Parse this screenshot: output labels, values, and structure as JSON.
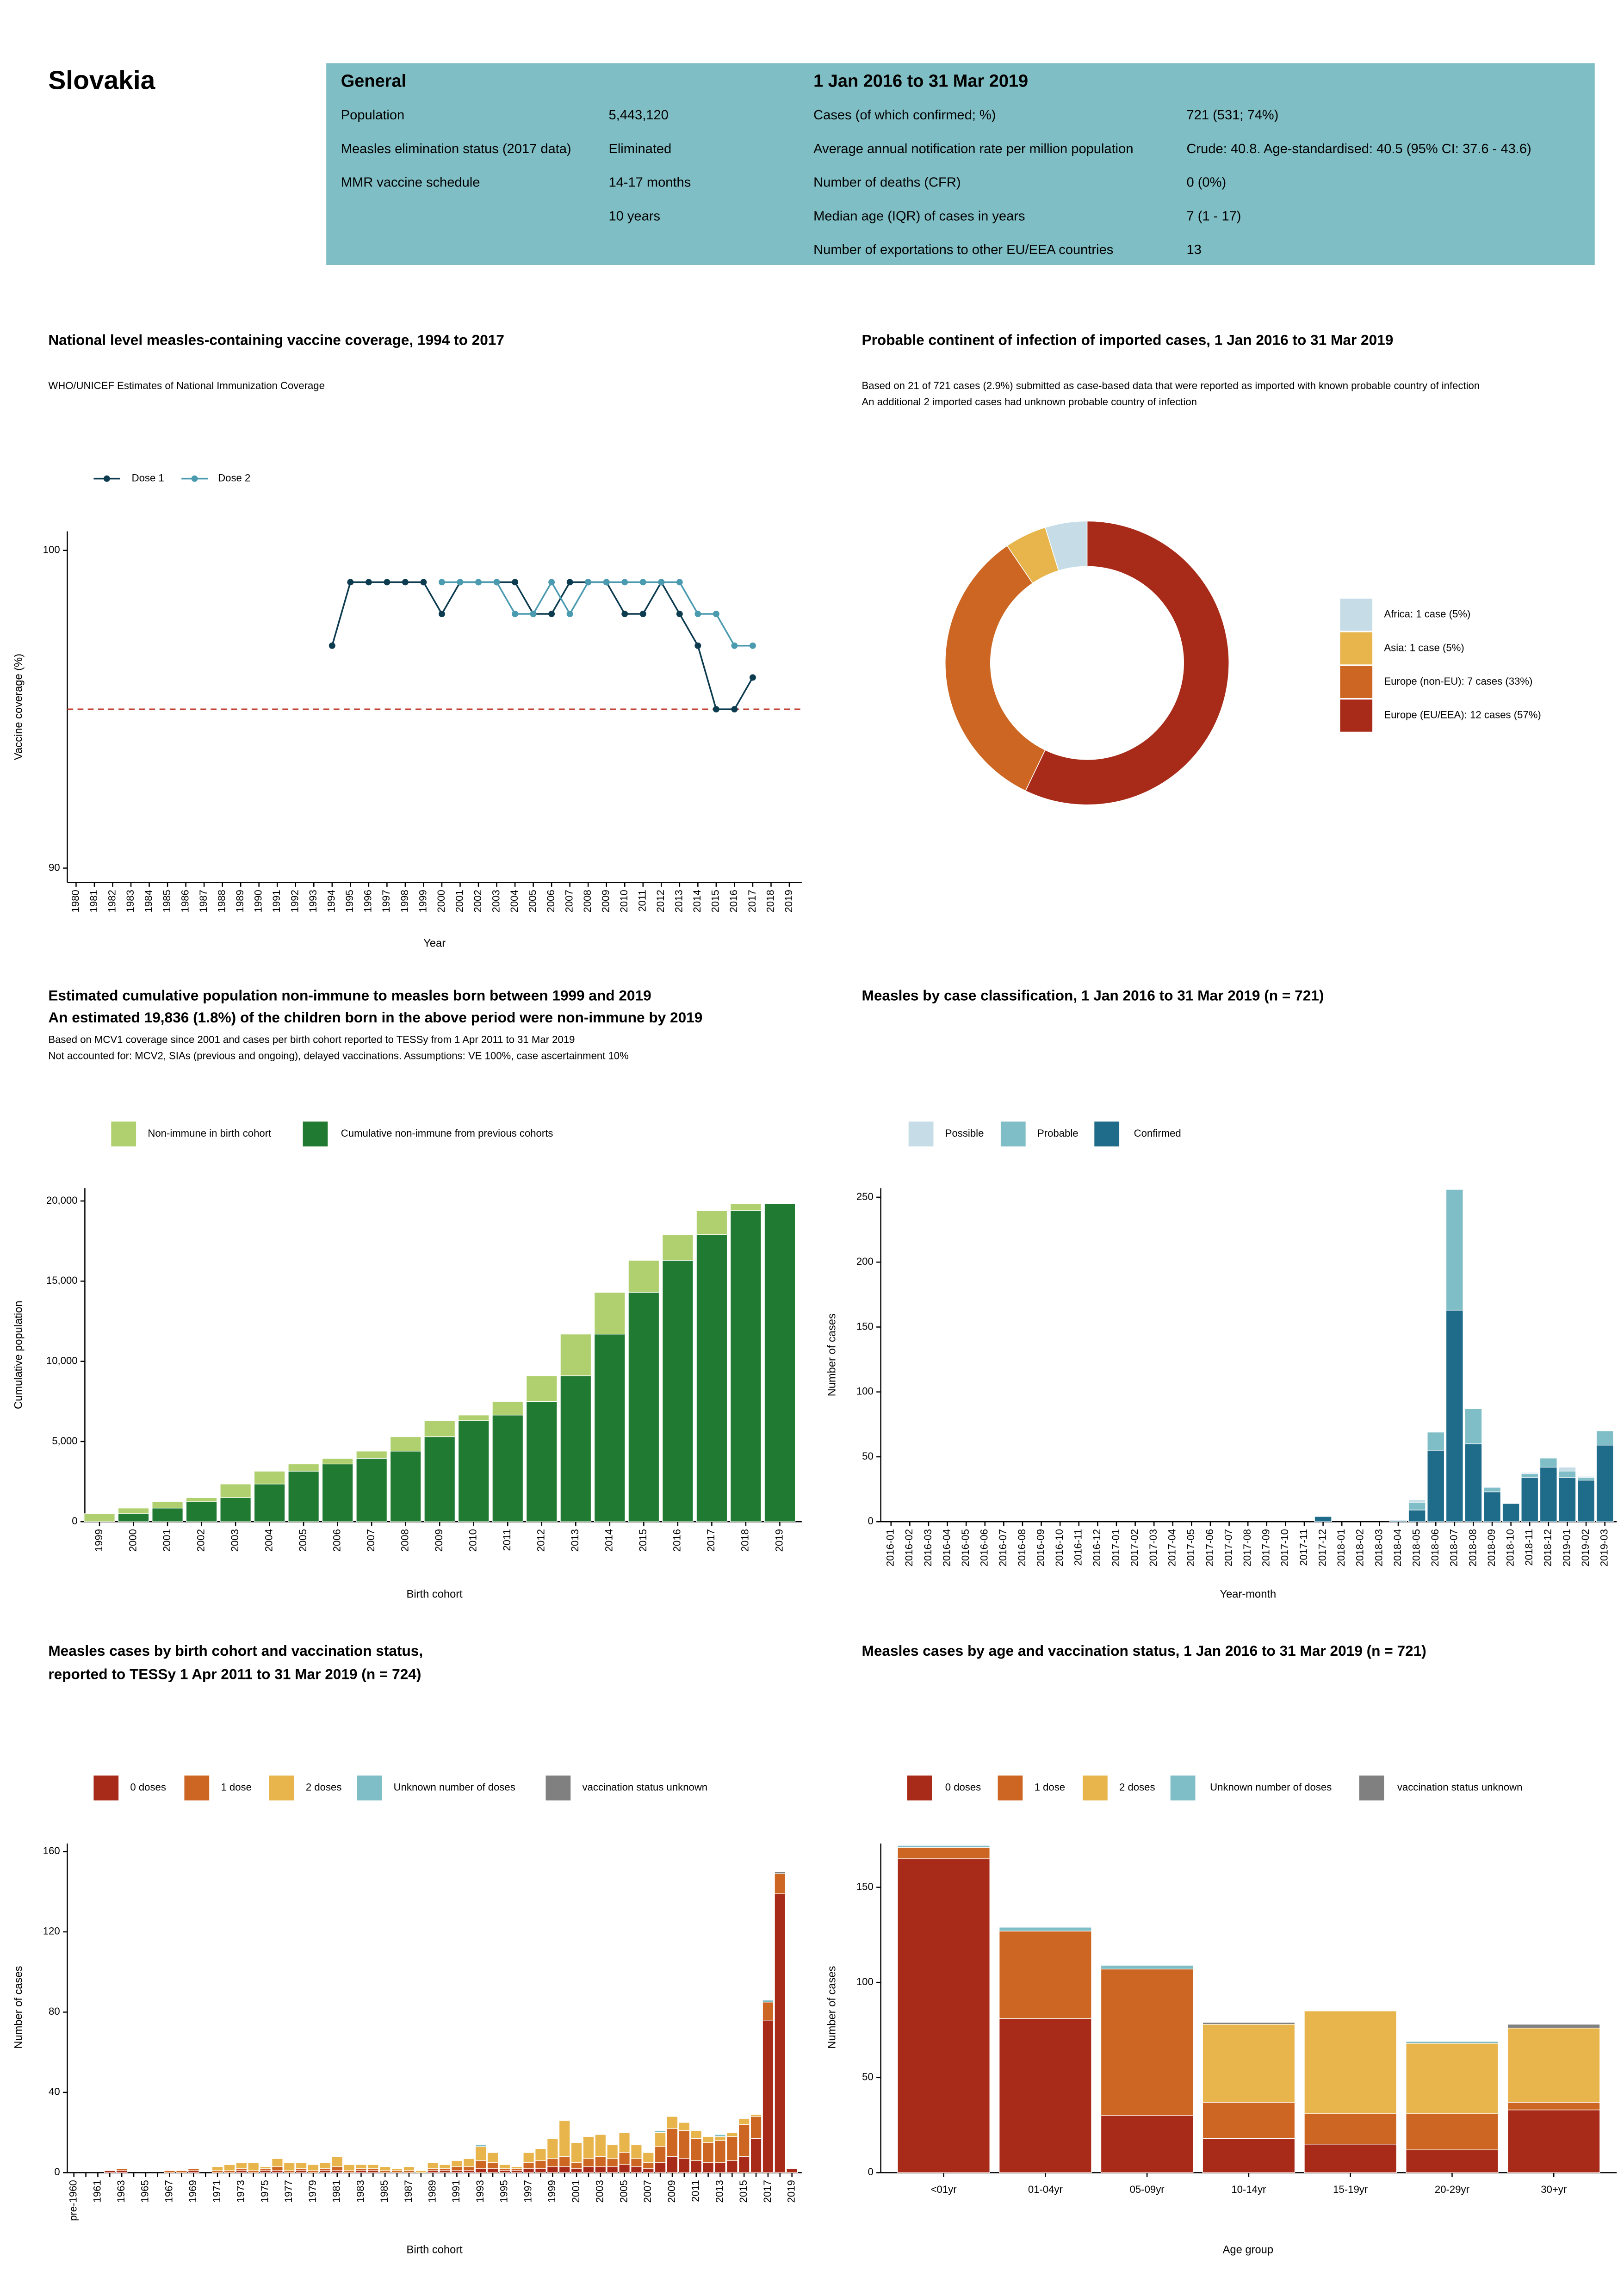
{
  "header": {
    "country": "Slovakia",
    "general": {
      "title": "General",
      "rows": [
        {
          "label": "Population",
          "value": "5,443,120"
        },
        {
          "label": "Measles elimination status (2017 data)",
          "value": "Eliminated"
        },
        {
          "label": "MMR vaccine schedule",
          "value": "14-17 months"
        },
        {
          "value": "10 years"
        }
      ]
    },
    "period": {
      "title": "1 Jan 2016 to 31 Mar 2019",
      "rows": [
        {
          "label": "Cases (of which confirmed; %)",
          "value": "721 (531; 74%)"
        },
        {
          "label": "Average annual notification rate per million population",
          "value": "Crude: 40.8. Age-standardised: 40.5 (95% CI: 37.6 - 43.6)"
        },
        {
          "label": "Number of deaths (CFR)",
          "value": "0 (0%)"
        },
        {
          "label": "Median age (IQR) of cases in years",
          "value": "7 (1 - 17)"
        },
        {
          "label": "Number of exportations to other EU/EEA countries",
          "value": "13"
        }
      ]
    }
  },
  "chart_data": [
    {
      "type": "line",
      "title": [
        "National level measles-containing vaccine coverage, 1994 to 2017"
      ],
      "subtitle": [
        "WHO/UNICEF Estimates of National Immunization Coverage"
      ],
      "x_label": "Year",
      "y_label": "Vaccine coverage (%)",
      "categories": [
        "1980",
        "1981",
        "1982",
        "1983",
        "1984",
        "1985",
        "1986",
        "1987",
        "1988",
        "1989",
        "1990",
        "1991",
        "1992",
        "1993",
        "1994",
        "1995",
        "1996",
        "1997",
        "1998",
        "1999",
        "2000",
        "2001",
        "2002",
        "2003",
        "2004",
        "2005",
        "2006",
        "2007",
        "2008",
        "2009",
        "2010",
        "2011",
        "2012",
        "2013",
        "2014",
        "2015",
        "2016",
        "2017",
        "2018",
        "2019"
      ],
      "series": [
        {
          "name": "Dose 1",
          "color": "#0d3b4f",
          "values": [
            null,
            null,
            null,
            null,
            null,
            null,
            null,
            null,
            null,
            null,
            null,
            null,
            null,
            null,
            97,
            99,
            99,
            99,
            99,
            99,
            98,
            99,
            99,
            99,
            99,
            98,
            98,
            99,
            99,
            99,
            98,
            98,
            99,
            98,
            97,
            95,
            95,
            96,
            null,
            null
          ]
        },
        {
          "name": "Dose 2",
          "color": "#4a9bb0",
          "values": [
            null,
            null,
            null,
            null,
            null,
            null,
            null,
            null,
            null,
            null,
            null,
            null,
            null,
            null,
            null,
            null,
            null,
            null,
            null,
            null,
            99,
            99,
            99,
            99,
            98,
            98,
            99,
            98,
            99,
            99,
            99,
            99,
            99,
            99,
            98,
            98,
            97,
            97,
            null,
            null
          ]
        }
      ],
      "reference_line": {
        "value": 95,
        "color": "#c0392b"
      },
      "ylim": [
        89.55,
        100.6
      ],
      "yticks": [
        90,
        100
      ]
    },
    {
      "type": "pie",
      "donut": true,
      "title": [
        "Probable continent of infection of imported cases, 1 Jan 2016 to 31 Mar 2019"
      ],
      "subtitle": [
        "Based on 21 of 721 cases (2.9%) submitted as case-based data that were reported as imported with known probable country of infection",
        "An additional 2 imported cases had unknown probable country of infection"
      ],
      "categories": [
        "Africa: 1 case (5%)",
        "Asia: 1 case (5%)",
        "Europe (non-EU): 7 cases (33%)",
        "Europe (EU/EEA): 12 cases (57%)"
      ],
      "values": [
        1,
        1,
        7,
        12
      ],
      "colors": [
        "#c6dde8",
        "#e8b54d",
        "#cc6622",
        "#a82a18"
      ]
    },
    {
      "type": "bar",
      "stacked": true,
      "title": [
        "Estimated cumulative population non-immune to measles born between 1999 and 2019",
        "An estimated 19,836 (1.8%) of the children born in the above period were non-immune by 2019"
      ],
      "subtitle": [
        "Based on MCV1 coverage since 2001 and cases per birth cohort reported to TESSy from 1 Apr 2011 to 31 Mar 2019",
        "Not accounted for: MCV2, SIAs (previous and ongoing), delayed vaccinations. Assumptions: VE 100%, case ascertainment 10%"
      ],
      "x_label": "Birth cohort",
      "y_label": "Cumulative population",
      "categories": [
        "1999",
        "2000",
        "2001",
        "2002",
        "2003",
        "2004",
        "2005",
        "2006",
        "2007",
        "2008",
        "2009",
        "2010",
        "2011",
        "2012",
        "2013",
        "2014",
        "2015",
        "2016",
        "2017",
        "2018",
        "2019"
      ],
      "series": [
        {
          "name": "Non-immune in birth cohort",
          "color": "#b0d070",
          "values": [
            500,
            350,
            400,
            250,
            850,
            800,
            450,
            350,
            450,
            900,
            1000,
            350,
            850,
            1600,
            2600,
            2600,
            2000,
            1600,
            1500,
            436,
            0
          ]
        },
        {
          "name": "Cumulative non-immune from previous cohorts",
          "color": "#217a32",
          "values": [
            0,
            500,
            850,
            1250,
            1500,
            2350,
            3150,
            3600,
            3950,
            4400,
            5300,
            6300,
            6650,
            7500,
            9100,
            11700,
            14300,
            16300,
            17900,
            19400,
            19836
          ]
        }
      ],
      "ylim": [
        0,
        20800
      ],
      "yticks": [
        0,
        {
          "value": 5000,
          "label": "5,000"
        },
        {
          "value": 10000,
          "label": "10,000"
        },
        {
          "value": 15000,
          "label": "15,000"
        },
        {
          "value": 20000,
          "label": "20,000"
        }
      ]
    },
    {
      "type": "bar",
      "stacked": true,
      "title": [
        "Measles by case classification, 1 Jan 2016 to 31 Mar 2019 (n = 721)"
      ],
      "x_label": "Year-month",
      "y_label": "Number of cases",
      "categories": [
        "2016-01",
        "2016-02",
        "2016-03",
        "2016-04",
        "2016-05",
        "2016-06",
        "2016-07",
        "2016-08",
        "2016-09",
        "2016-10",
        "2016-11",
        "2016-12",
        "2017-01",
        "2017-02",
        "2017-03",
        "2017-04",
        "2017-05",
        "2017-06",
        "2017-07",
        "2017-08",
        "2017-09",
        "2017-10",
        "2017-11",
        "2017-12",
        "2018-01",
        "2018-02",
        "2018-03",
        "2018-04",
        "2018-05",
        "2018-06",
        "2018-07",
        "2018-08",
        "2018-09",
        "2018-10",
        "2018-11",
        "2018-12",
        "2019-01",
        "2019-02",
        "2019-03"
      ],
      "series": [
        {
          "name": "Possible",
          "color": "#c6dde8",
          "values": [
            0,
            0,
            0,
            0,
            0,
            0,
            0,
            0,
            0,
            0,
            0,
            0,
            0,
            0,
            0,
            0,
            0,
            0,
            0,
            0,
            0,
            0,
            0,
            0,
            0,
            0,
            0,
            0,
            2,
            0,
            0,
            0,
            1,
            0,
            1,
            0,
            3,
            1,
            0
          ]
        },
        {
          "name": "Probable",
          "color": "#7fbec6",
          "values": [
            0,
            0,
            0,
            0,
            0,
            0,
            0,
            0,
            0,
            0,
            0,
            0,
            0,
            0,
            0,
            0,
            0,
            0,
            0,
            0,
            0,
            0,
            0,
            0,
            0,
            0,
            0,
            0,
            6,
            14,
            93,
            27,
            3,
            0,
            3,
            7,
            5,
            2,
            11
          ]
        },
        {
          "name": "Confirmed",
          "color": "#1e6b8a",
          "values": [
            0,
            0,
            0,
            0,
            0,
            0,
            0,
            0,
            0,
            0,
            0,
            0,
            0,
            0,
            0,
            0,
            0,
            0,
            0,
            0,
            0,
            0,
            0,
            4,
            0,
            0,
            0,
            1,
            9,
            55,
            163,
            60,
            23,
            14,
            34,
            42,
            34,
            32,
            59
          ]
        }
      ],
      "ylim": [
        0,
        257
      ],
      "yticks": [
        0,
        50,
        100,
        150,
        200,
        250
      ]
    },
    {
      "type": "bar",
      "stacked": true,
      "title": [
        "Measles cases by birth cohort and vaccination status,",
        "reported to TESSy 1 Apr 2011 to 31 Mar 2019 (n = 724)"
      ],
      "x_label": "Birth cohort",
      "y_label": "Number of cases",
      "categories": [
        "pre-1960",
        null,
        "1961",
        null,
        "1963",
        null,
        "1965",
        null,
        "1967",
        null,
        "1969",
        null,
        "1971",
        null,
        "1973",
        null,
        "1975",
        null,
        "1977",
        null,
        "1979",
        null,
        "1981",
        null,
        "1983",
        null,
        "1985",
        null,
        "1987",
        null,
        "1989",
        null,
        "1991",
        null,
        "1993",
        null,
        "1995",
        null,
        "1997",
        null,
        "1999",
        null,
        "2001",
        null,
        "2003",
        null,
        "2005",
        null,
        "2007",
        null,
        "2009",
        null,
        "2011",
        null,
        "2013",
        null,
        "2015",
        null,
        "2017",
        null,
        "2019"
      ],
      "series": [
        {
          "name": "0 doses",
          "color": "#a82a18",
          "values": [
            0,
            0,
            0,
            1,
            1,
            0,
            0,
            0,
            0,
            0,
            1,
            0,
            0,
            0,
            1,
            0,
            1,
            1,
            0,
            1,
            0,
            1,
            1,
            0,
            1,
            1,
            0,
            0,
            0,
            0,
            1,
            1,
            1,
            1,
            2,
            2,
            1,
            1,
            2,
            2,
            3,
            3,
            2,
            3,
            3,
            3,
            4,
            3,
            2,
            5,
            8,
            7,
            6,
            5,
            5,
            6,
            8,
            17,
            76,
            139,
            2
          ]
        },
        {
          "name": "1 dose",
          "color": "#cc6622",
          "values": [
            0,
            0,
            0,
            0,
            1,
            0,
            0,
            0,
            1,
            1,
            1,
            0,
            1,
            1,
            1,
            1,
            1,
            2,
            1,
            1,
            1,
            1,
            2,
            1,
            1,
            1,
            1,
            1,
            1,
            0,
            1,
            1,
            2,
            2,
            4,
            3,
            1,
            1,
            3,
            4,
            4,
            5,
            3,
            4,
            5,
            4,
            6,
            4,
            3,
            8,
            14,
            14,
            11,
            10,
            11,
            12,
            16,
            11,
            9,
            10,
            0
          ]
        },
        {
          "name": "2 doses",
          "color": "#e8b54d",
          "values": [
            0,
            0,
            0,
            0,
            0,
            0,
            0,
            0,
            0,
            0,
            0,
            0,
            2,
            3,
            3,
            4,
            1,
            4,
            4,
            3,
            3,
            3,
            5,
            3,
            2,
            2,
            2,
            1,
            2,
            1,
            3,
            2,
            3,
            4,
            7,
            5,
            2,
            1,
            5,
            6,
            10,
            18,
            10,
            11,
            11,
            7,
            10,
            7,
            5,
            7,
            6,
            4,
            4,
            3,
            2,
            2,
            3,
            1,
            0,
            0,
            0
          ]
        },
        {
          "name": "Unknown number of doses",
          "color": "#7fbec6",
          "values": [
            0,
            0,
            0,
            0,
            0,
            0,
            0,
            0,
            0,
            0,
            0,
            0,
            0,
            0,
            0,
            0,
            0,
            0,
            0,
            0,
            0,
            0,
            0,
            0,
            0,
            0,
            0,
            0,
            0,
            0,
            0,
            0,
            0,
            0,
            1,
            0,
            0,
            0,
            0,
            0,
            0,
            0,
            0,
            0,
            0,
            0,
            0,
            0,
            0,
            1,
            0,
            0,
            0,
            0,
            1,
            0,
            0,
            0,
            1,
            0,
            0
          ]
        },
        {
          "name": "vaccination status unknown",
          "color": "#808080",
          "values": [
            0,
            0,
            0,
            0,
            0,
            0,
            0,
            0,
            0,
            0,
            0,
            0,
            0,
            0,
            0,
            0,
            0,
            0,
            0,
            0,
            0,
            0,
            0,
            0,
            0,
            0,
            0,
            0,
            0,
            0,
            0,
            0,
            0,
            0,
            0,
            0,
            0,
            0,
            0,
            0,
            0,
            0,
            0,
            0,
            0,
            0,
            0,
            0,
            0,
            0,
            0,
            0,
            0,
            0,
            0,
            0,
            0,
            0,
            0,
            1,
            0
          ]
        }
      ],
      "ylim": [
        0,
        164
      ],
      "yticks": [
        0,
        40,
        80,
        120,
        160
      ]
    },
    {
      "type": "bar",
      "stacked": true,
      "title": [
        "Measles cases by age and vaccination status, 1 Jan 2016 to 31 Mar 2019 (n = 721)"
      ],
      "x_label": "Age group",
      "y_label": "Number of cases",
      "categories": [
        "<01yr",
        "01-04yr",
        "05-09yr",
        "10-14yr",
        "15-19yr",
        "20-29yr",
        "30+yr"
      ],
      "series": [
        {
          "name": "0 doses",
          "color": "#a82a18",
          "values": [
            165,
            81,
            30,
            18,
            15,
            12,
            33
          ]
        },
        {
          "name": "1 dose",
          "color": "#cc6622",
          "values": [
            6,
            46,
            77,
            19,
            16,
            19,
            4
          ]
        },
        {
          "name": "2 doses",
          "color": "#e8b54d",
          "values": [
            0,
            0,
            0,
            41,
            54,
            37,
            39
          ]
        },
        {
          "name": "Unknown number of doses",
          "color": "#7fbec6",
          "values": [
            1,
            2,
            2,
            0,
            0,
            1,
            0
          ]
        },
        {
          "name": "vaccination status unknown",
          "color": "#808080",
          "values": [
            0,
            0,
            0,
            1,
            0,
            0,
            2
          ]
        }
      ],
      "ylim": [
        0,
        173
      ],
      "yticks": [
        0,
        50,
        100,
        150
      ]
    }
  ]
}
